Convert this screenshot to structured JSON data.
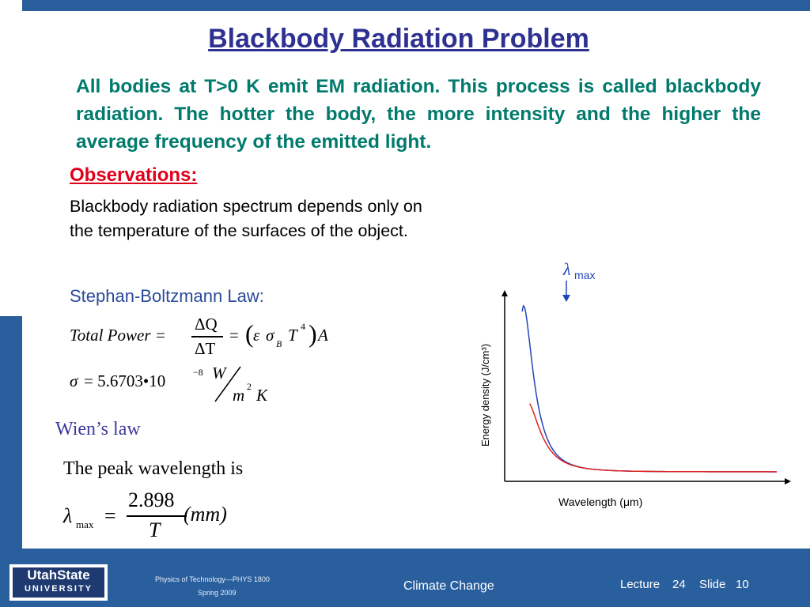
{
  "slide": {
    "title": "Blackbody Radiation Problem",
    "intro": "All bodies at T>0 K emit EM radiation.  This process is called blackbody radiation.  The hotter the body, the more intensity and the higher the average frequency of the emitted light.",
    "observations_heading": "Observations:",
    "observations_body": "Blackbody radiation spectrum depends only on the temperature of the surfaces of the object.",
    "sb_heading": "Stephan-Boltzmann Law:",
    "eq1": {
      "lhs": "Total Power =",
      "num": "ΔQ",
      "den": "ΔT",
      "mid": "=",
      "rhs_paren_l": "(",
      "eps": "ε",
      "sigma": "σ",
      "sub_b": "B",
      "t": "T",
      "exp4": "4",
      "rhs_paren_r": ")",
      "a": "A"
    },
    "eq2": {
      "sigma": "σ",
      "eq": "= 5.6703•10",
      "exp": "−8",
      "w": "W",
      "m": "m",
      "exp2": "2",
      "k": "K"
    },
    "wien_heading": "Wien’s law",
    "peak_text": "The peak wavelength is",
    "eq3": {
      "lambda": "λ",
      "sub": "max",
      "eq": "=",
      "num": "2.898",
      "den": "T",
      "unit": "(mm)"
    }
  },
  "chart_data": {
    "type": "line",
    "xlabel": "Wavelength (μm)",
    "ylabel": "Energy density (J/cm³)",
    "annotation": {
      "symbol": "λ",
      "sub": "max"
    },
    "series": [
      {
        "color": "#2244bb",
        "shape": "hotter",
        "peak_rel": 1.0
      },
      {
        "color": "#e02020",
        "shape": "cooler",
        "peak_rel": 0.42
      }
    ]
  },
  "footer": {
    "logo_line1": "UtahState",
    "logo_line2": "UNIVERSITY",
    "course": "Physics of Technology—PHYS 1800",
    "term": "Spring 2009",
    "center": "Climate Change",
    "lecture_label": "Lecture",
    "lecture_num": "24",
    "slide_label": "Slide",
    "slide_num": "10"
  }
}
